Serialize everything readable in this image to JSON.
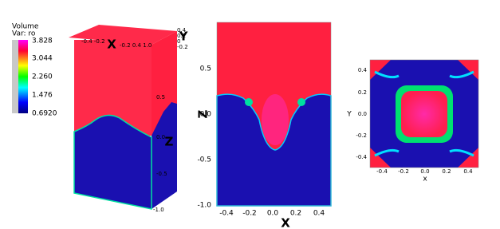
{
  "legend": {
    "title": "Volume",
    "var": "Var: ro",
    "labels": [
      "3.828",
      "3.044",
      "2.260",
      "1.476",
      "0.6920"
    ]
  },
  "panel_3d": {
    "x_label": "X",
    "y_label": "Y",
    "z_label": "Z",
    "top_ticks_left": "-0.4 -0.2",
    "top_ticks_right": "-0.2 0.4 1.0",
    "y_ticks": [
      "0.4",
      "0.2",
      "0",
      "-0.2"
    ],
    "z_ticks": [
      "0.5",
      "0.0",
      "-0.5",
      "-1.0"
    ]
  },
  "panel_xz": {
    "x_label": "X",
    "z_label": "Z",
    "x_ticks": [
      "-0.4",
      "-0.2",
      "0.0",
      "0.2",
      "0.4"
    ],
    "z_ticks": [
      "0.5",
      "0.0",
      "-0.5",
      "-1.0"
    ]
  },
  "panel_xy": {
    "x_label": "x",
    "y_label": "Y",
    "x_ticks": [
      "-0.4",
      "-0.2",
      "0.0",
      "0.2",
      "0.4"
    ],
    "y_ticks": [
      "0.4",
      "0.2",
      "0.0",
      "-0.2",
      "-0.4"
    ]
  }
}
